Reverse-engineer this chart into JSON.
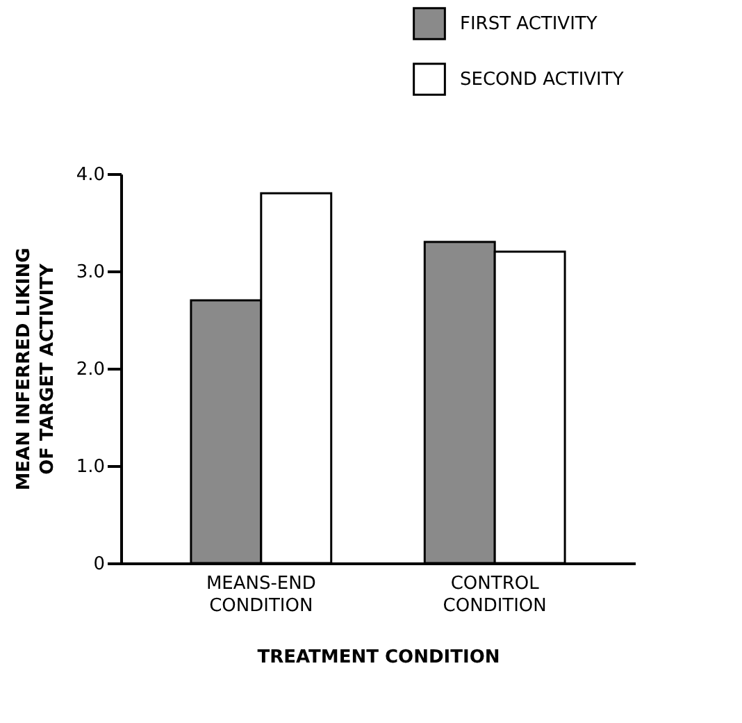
{
  "chart_data": {
    "type": "bar",
    "categories": [
      "MEANS-END\nCONDITION",
      "CONTROL\nCONDITION"
    ],
    "series": [
      {
        "name": "FIRST ACTIVITY",
        "color": "#8a8a8a",
        "values": [
          2.7,
          3.3
        ]
      },
      {
        "name": "SECOND ACTIVITY",
        "color": "#ffffff",
        "values": [
          3.8,
          3.2
        ]
      }
    ],
    "xlabel": "TREATMENT CONDITION",
    "ylabel": "MEAN INFERRED LIKING\nOF TARGET ACTIVITY",
    "ylim": [
      0,
      4
    ],
    "yticks": [
      0,
      {
        "value": 1,
        "label": "1.0"
      },
      {
        "value": 2,
        "label": "2.0"
      },
      {
        "value": 3,
        "label": "3.0"
      },
      {
        "value": 4,
        "label": "4.0"
      }
    ],
    "legend": "top right"
  }
}
